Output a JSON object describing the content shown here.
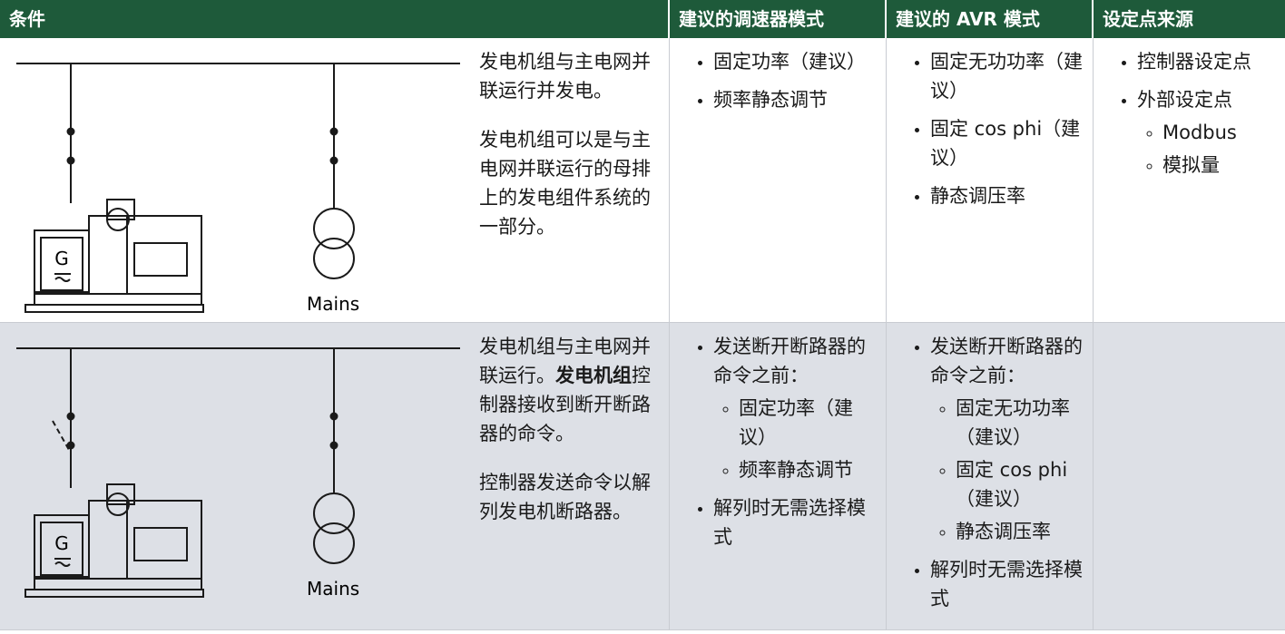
{
  "header": [
    "条件",
    "建议的调速器模式",
    "建议的 AVR 模式",
    "设定点来源"
  ],
  "rows": [
    {
      "diagram_label": "Mains",
      "description": [
        [
          "发电机组与主电网并联运行并发电。"
        ],
        [
          "发电机组可以是与主电网并联运行的母排上的发电组件系统的一部分。"
        ]
      ],
      "governor": [
        {
          "text": "固定功率（建议）"
        },
        {
          "text": "频率静态调节"
        }
      ],
      "avr": [
        {
          "text": "固定无功功率（建议）"
        },
        {
          "text": "固定 cos phi（建议）"
        },
        {
          "text": "静态调压率"
        }
      ],
      "setpoint": [
        {
          "text": "控制器设定点"
        },
        {
          "text": "外部设定点",
          "items": [
            "Modbus",
            "模拟量"
          ]
        }
      ]
    },
    {
      "diagram_label": "Mains",
      "description": [
        [
          "发电机组与主电网并联运行。",
          "发电机组",
          "控制器接收到断开断路器的命令。"
        ],
        [
          "控制器发送命令以解列发电机断路器。"
        ]
      ],
      "governor": [
        {
          "text": "发送断开断路器的命令之前：",
          "items": [
            "固定功率（建议）",
            "频率静态调节"
          ]
        },
        {
          "text": "解列时无需选择模式"
        }
      ],
      "avr": [
        {
          "text": "发送断开断路器的命令之前：",
          "items": [
            "固定无功功率（建议）",
            "固定 cos phi（建议）",
            "静态调压率"
          ]
        },
        {
          "text": "解列时无需选择模式"
        }
      ],
      "setpoint": []
    }
  ]
}
